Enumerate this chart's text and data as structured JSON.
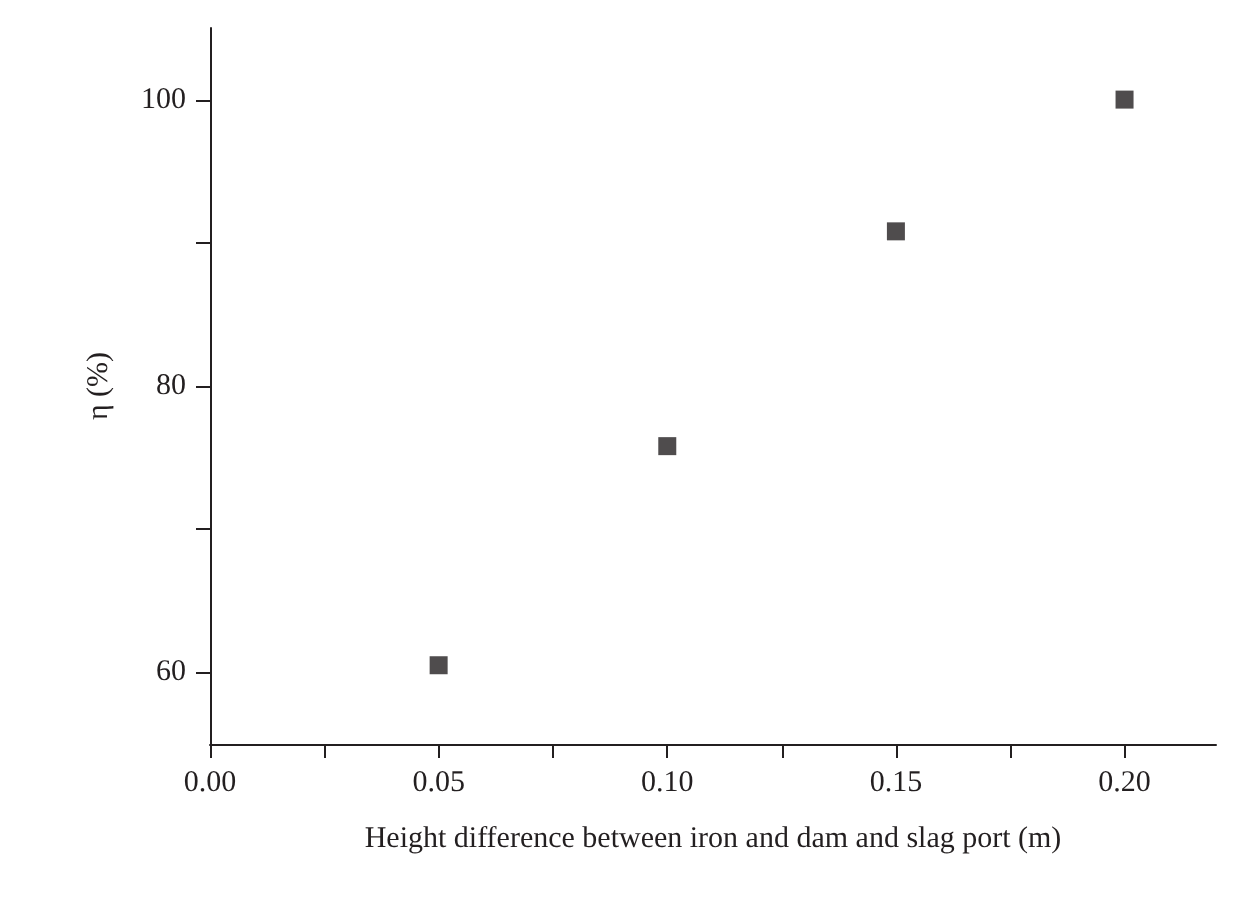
{
  "chart_data": {
    "type": "scatter",
    "xlabel": "Height difference between iron and dam and slag port (m)",
    "ylabel": "η (%)",
    "x": [
      0.05,
      0.1,
      0.15,
      0.2
    ],
    "series": [
      {
        "color": "#231f20",
        "values": [
          60.5,
          75.8,
          90.8,
          100
        ]
      }
    ],
    "xlim": [
      0,
      0.22
    ],
    "xticks": [
      {
        "value": 0,
        "label": "0.00"
      },
      {
        "value": 0.025,
        "label": null
      },
      {
        "value": 0.05,
        "label": "0.05"
      },
      {
        "value": 0.075,
        "label": null
      },
      {
        "value": 0.1,
        "label": "0.10"
      },
      {
        "value": 0.125,
        "label": null
      },
      {
        "value": 0.15,
        "label": "0.15"
      },
      {
        "value": 0.175,
        "label": null
      },
      {
        "value": 0.2,
        "label": "0.20"
      }
    ],
    "ylim": [
      55,
      105
    ],
    "yticks": [
      60,
      {
        "value": 70,
        "label": null
      },
      80,
      {
        "value": 90,
        "label": null
      },
      100
    ],
    "marker": "square",
    "grid": false
  }
}
